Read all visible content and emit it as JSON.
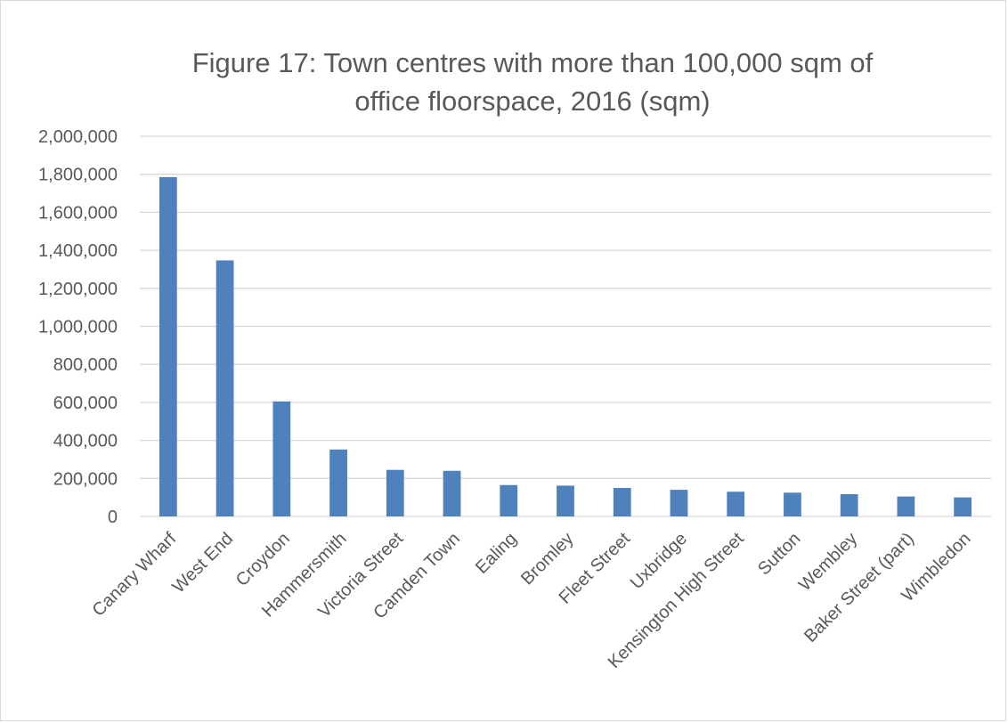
{
  "chart_data": {
    "type": "bar",
    "title": "Figure 17: Town centres with more than 100,000 sqm of office floorspace, 2016 (sqm)",
    "title_lines": [
      "Figure 17: Town centres with more than 100,000 sqm of",
      "office floorspace, 2016 (sqm)"
    ],
    "xlabel": "",
    "ylabel": "",
    "categories": [
      "Canary Wharf",
      "West End",
      "Croydon",
      "Hammersmith",
      "Victoria Street",
      "Camden Town",
      "Ealing",
      "Bromley",
      "Fleet Street",
      "Uxbridge",
      "Kensington High Street",
      "Sutton",
      "Wembley",
      "Baker Street (part)",
      "Wimbledon"
    ],
    "values": [
      1785000,
      1347000,
      605000,
      352000,
      245000,
      240000,
      165000,
      162000,
      150000,
      140000,
      130000,
      125000,
      117000,
      105000,
      100000
    ],
    "ylim": [
      0,
      2000000
    ],
    "yticks": [
      0,
      200000,
      400000,
      600000,
      800000,
      1000000,
      1200000,
      1400000,
      1600000,
      1800000,
      2000000
    ],
    "ytick_labels": [
      "0",
      "200,000",
      "400,000",
      "600,000",
      "800,000",
      "1,000,000",
      "1,200,000",
      "1,400,000",
      "1,600,000",
      "1,800,000",
      "2,000,000"
    ],
    "grid": true,
    "legend": "none",
    "bar_color": "#4f81bd",
    "grid_color": "#d9d9d9",
    "text_color": "#595959"
  }
}
